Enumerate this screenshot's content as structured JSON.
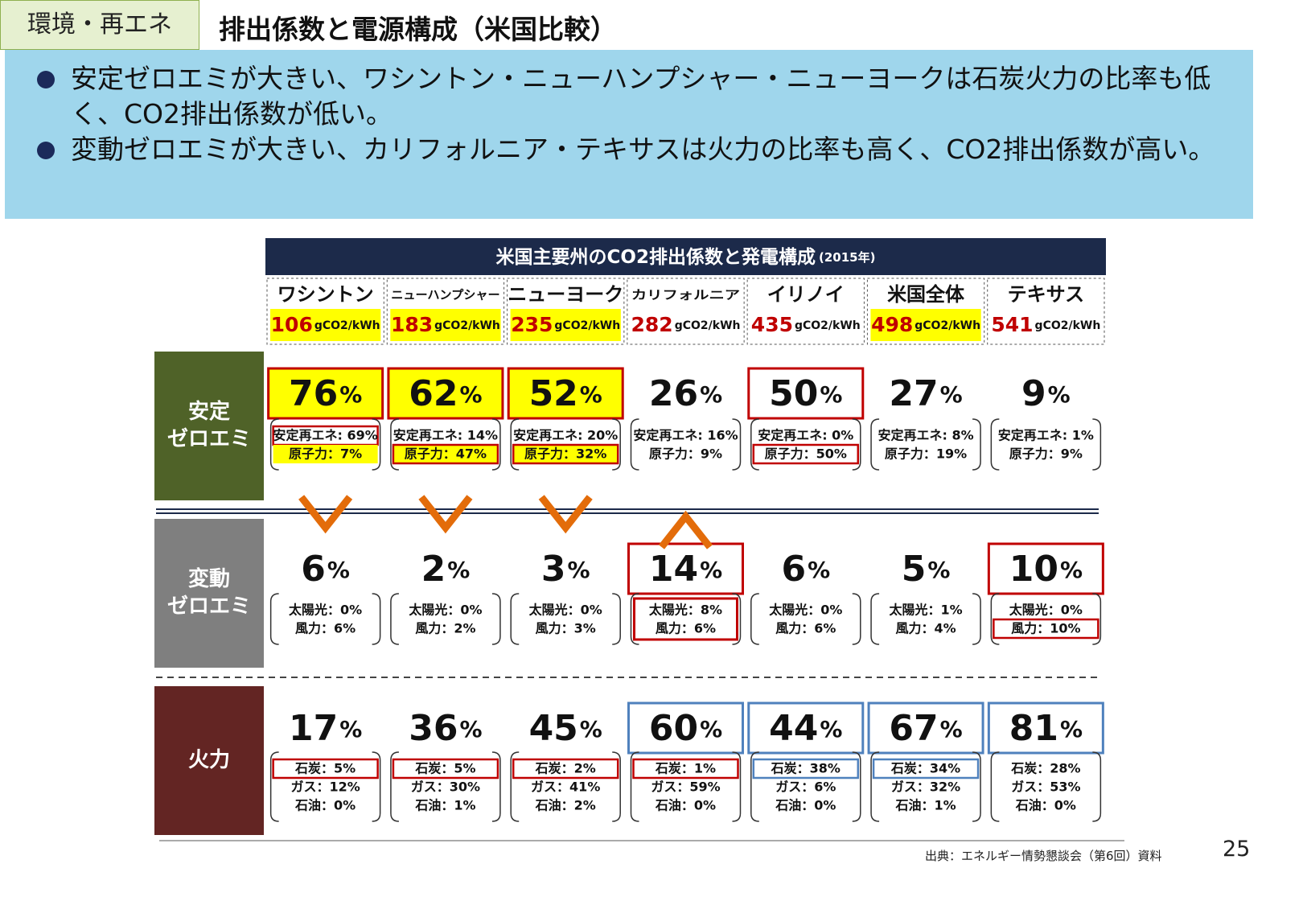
{
  "header": {
    "tag": "環境・再エネ",
    "title": "排出係数と電源構成（米国比較）"
  },
  "bullets": [
    "安定ゼロエミが大きい、ワシントン・ニューハンプシャー・ニューヨークは石炭火力の比率も低く、CO2排出係数が低い。",
    "変動ゼロエミが大きい、カリフォルニア・テキサスは火力の比率も高く、CO2排出係数が高い。"
  ],
  "table": {
    "title": "米国主要州のCO2排出係数と発電構成",
    "year": "(2015年)",
    "unit": "gCO2/kWh",
    "percent": "%",
    "states": [
      {
        "name": "ワシントン",
        "co2": "106",
        "fill": "#ffff00"
      },
      {
        "name": "ニューハンプシャー",
        "co2": "183",
        "fill": "#ffff00"
      },
      {
        "name": "ニューヨーク",
        "co2": "235",
        "fill": "#ffff00"
      },
      {
        "name": "カリフォルニア",
        "co2": "282"
      },
      {
        "name": "イリノイ",
        "co2": "435"
      },
      {
        "name": "米国全体",
        "co2": "498",
        "fill": "#ffff00"
      },
      {
        "name": "テキサス",
        "co2": "541"
      }
    ],
    "rows": [
      {
        "label": [
          "安定",
          "ゼロエミ"
        ],
        "color": "#4f6228",
        "cells": [
          {
            "total": "76",
            "fill": "#ffff00",
            "border": "#c00000",
            "details": [
              {
                "text": "安定再エネ: 69%",
                "border": "#c00000"
              },
              {
                "text": "原子力：7%",
                "fill": "#ffff00"
              }
            ]
          },
          {
            "total": "62",
            "fill": "#ffff00",
            "border": "#c00000",
            "details": [
              {
                "text": "安定再エネ: 14%"
              },
              {
                "text": "原子力：47%",
                "fill": "#ffff00",
                "border": "#c00000"
              }
            ]
          },
          {
            "total": "52",
            "fill": "#ffff00",
            "border": "#c00000",
            "details": [
              {
                "text": "安定再エネ: 20%"
              },
              {
                "text": "原子力：32%",
                "fill": "#ffff00",
                "border": "#c00000"
              }
            ]
          },
          {
            "total": "26",
            "details": [
              {
                "text": "安定再エネ: 16%"
              },
              {
                "text": "原子力：9%"
              }
            ]
          },
          {
            "total": "50",
            "border": "#c00000",
            "details": [
              {
                "text": "安定再エネ: 0%"
              },
              {
                "text": "原子力：50%",
                "border": "#c00000"
              }
            ]
          },
          {
            "total": "27",
            "details": [
              {
                "text": "安定再エネ: 8%"
              },
              {
                "text": "原子力：19%"
              }
            ]
          },
          {
            "total": "9",
            "details": [
              {
                "text": "安定再エネ: 1%"
              },
              {
                "text": "原子力：9%"
              }
            ]
          }
        ]
      },
      {
        "label": [
          "変動",
          "ゼロエミ"
        ],
        "color": "#7f7f7f",
        "cells": [
          {
            "total": "6",
            "details": [
              {
                "text": "太陽光：0%"
              },
              {
                "text": "風力：6%"
              }
            ]
          },
          {
            "total": "2",
            "details": [
              {
                "text": "太陽光：0%"
              },
              {
                "text": "風力：2%"
              }
            ]
          },
          {
            "total": "3",
            "details": [
              {
                "text": "太陽光：0%"
              },
              {
                "text": "風力：3%"
              }
            ]
          },
          {
            "total": "14",
            "border": "#c00000",
            "details_border": "#c00000",
            "details": [
              {
                "text": "太陽光：8%"
              },
              {
                "text": "風力：6%"
              }
            ]
          },
          {
            "total": "6",
            "details": [
              {
                "text": "太陽光：0%"
              },
              {
                "text": "風力：6%"
              }
            ]
          },
          {
            "total": "5",
            "details": [
              {
                "text": "太陽光：1%"
              },
              {
                "text": "風力：4%"
              }
            ]
          },
          {
            "total": "10",
            "border": "#c00000",
            "details": [
              {
                "text": "太陽光：0%"
              },
              {
                "text": "風力：10%",
                "border": "#c00000"
              }
            ]
          }
        ]
      },
      {
        "label": [
          "火力"
        ],
        "color": "#632523",
        "cells": [
          {
            "total": "17",
            "details": [
              {
                "text": "石炭：5%",
                "border": "#c00000"
              },
              {
                "text": "ガス：12%"
              },
              {
                "text": "石油：0%"
              }
            ]
          },
          {
            "total": "36",
            "details": [
              {
                "text": "石炭：5%",
                "border": "#c00000"
              },
              {
                "text": "ガス：30%"
              },
              {
                "text": "石油：1%"
              }
            ]
          },
          {
            "total": "45",
            "details": [
              {
                "text": "石炭：2%",
                "border": "#c00000"
              },
              {
                "text": "ガス：41%"
              },
              {
                "text": "石油：2%"
              }
            ]
          },
          {
            "total": "60",
            "border": "#4f81bd",
            "details": [
              {
                "text": "石炭：1%",
                "border": "#c00000"
              },
              {
                "text": "ガス：59%"
              },
              {
                "text": "石油：0%"
              }
            ]
          },
          {
            "total": "44",
            "border": "#4f81bd",
            "details": [
              {
                "text": "石炭：38%",
                "border": "#4f81bd"
              },
              {
                "text": "ガス：6%"
              },
              {
                "text": "石油：0%"
              }
            ]
          },
          {
            "total": "67",
            "border": "#4f81bd",
            "details": [
              {
                "text": "石炭：34%",
                "border": "#4f81bd"
              },
              {
                "text": "ガス：32%"
              },
              {
                "text": "石油：1%"
              }
            ]
          },
          {
            "total": "81",
            "border": "#4f81bd",
            "details": [
              {
                "text": "石炭：28%"
              },
              {
                "text": "ガス：53%"
              },
              {
                "text": "石油：0%"
              }
            ]
          }
        ]
      }
    ]
  },
  "footer": {
    "source": "出典：エネルギー情勢懇談会（第6回）資料",
    "page": "25"
  }
}
